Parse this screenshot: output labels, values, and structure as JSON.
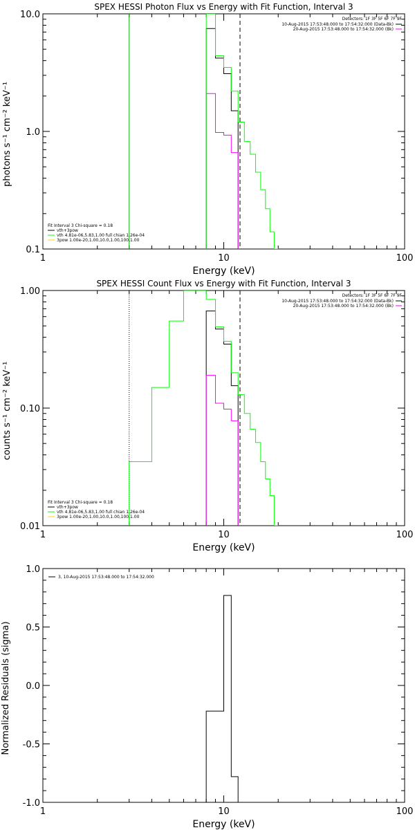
{
  "colors": {
    "axis": "#000000",
    "data_minus_bkg": "#000000",
    "background": "#ff00ff",
    "fit": "#00ff00",
    "fit_sub": "#ffd700",
    "markers": "#000000",
    "lower_bound": "#00aa00"
  },
  "chart_data": [
    {
      "id": "photon",
      "type": "line",
      "title": "SPEX HESSI Photon Flux vs Energy with Fit Function, Interval 3",
      "xlabel": "Energy (keV)",
      "ylabel": "photons s⁻¹ cm⁻² keV⁻¹",
      "xscale": "log",
      "yscale": "log",
      "xlim": [
        1,
        100
      ],
      "ylim": [
        0.1,
        10
      ],
      "xticks": [
        {
          "v": 1,
          "label": "1"
        },
        {
          "v": 10,
          "label": "10"
        },
        {
          "v": 100,
          "label": "100"
        }
      ],
      "yticks": [
        {
          "v": 0.1,
          "label": "0.1"
        },
        {
          "v": 1,
          "label": "1.0"
        },
        {
          "v": 10,
          "label": "10.0"
        }
      ],
      "vlines": [
        {
          "x": 3,
          "style": "solid",
          "color_key": "lower_bound"
        },
        {
          "x": 12.3,
          "style": "dashed",
          "color_key": "markers"
        }
      ],
      "series": [
        {
          "name": "10-Aug-2015 17:53:48.000 to 17:54:32.000 (Data-Bk)",
          "color_key": "data_minus_bkg",
          "edges": [
            8,
            9,
            10,
            11,
            12
          ],
          "values": [
            7.5,
            4.2,
            3.1,
            1.5
          ]
        },
        {
          "name": "20-Aug-2015 17:53:48.000 to 17:54:32.000 (Bk)",
          "color_key": "background",
          "edges": [
            8,
            9,
            10,
            11,
            12
          ],
          "values": [
            2.1,
            0.98,
            0.93,
            0.66
          ]
        },
        {
          "name": "vth+3pow",
          "color_key": "fit",
          "edges": [
            8,
            9,
            10,
            11,
            12,
            13,
            14,
            15,
            16,
            17,
            18,
            19,
            20
          ],
          "values": [
            10.5,
            4.4,
            3.5,
            2.2,
            1.2,
            0.82,
            0.64,
            0.45,
            0.32,
            0.22,
            0.14,
            0.1
          ]
        }
      ],
      "detectors_text": "Detectors: 1F 3F 5F 6F 7F 9F",
      "legend_lines": [
        "10-Aug-2015 17:53:48.000 to 17:54:32.000 (Data-Bk)",
        "20-Aug-2015 17:53:48.000 to 17:54:32.000 (Bk)"
      ],
      "fit_info": {
        "header": "Fit Interval 3   Chi-square = 0.18",
        "items": [
          {
            "text": "vth+3pow",
            "color_key": "data_minus_bkg"
          },
          {
            "text": "vth 4.81e-06,5.83,1.00  full chian 1.26e-04",
            "color_key": "fit"
          },
          {
            "text": "3pow 1.00e-20,1.00,10.0,1.00,100,1.00",
            "color_key": "fit_sub"
          }
        ]
      }
    },
    {
      "id": "count",
      "type": "line",
      "title": "SPEX HESSI Count Flux vs Energy with Fit Function, Interval 3",
      "xlabel": "Energy (keV)",
      "ylabel": "counts s⁻¹ cm⁻² keV⁻¹",
      "xscale": "log",
      "yscale": "log",
      "xlim": [
        1,
        100
      ],
      "ylim": [
        0.01,
        1
      ],
      "xticks": [
        {
          "v": 1,
          "label": "1"
        },
        {
          "v": 10,
          "label": "10"
        },
        {
          "v": 100,
          "label": "100"
        }
      ],
      "yticks": [
        {
          "v": 0.01,
          "label": "0.01"
        },
        {
          "v": 0.1,
          "label": "0.10"
        },
        {
          "v": 1,
          "label": "1.00"
        }
      ],
      "vlines": [
        {
          "x": 3,
          "style": "dotted",
          "color_key": "markers"
        },
        {
          "x": 12.3,
          "style": "dashed",
          "color_key": "markers"
        }
      ],
      "series": [
        {
          "name": "10-Aug-2015 17:53:48.000 to 17:54:32.000 (Data-Bk)",
          "color_key": "data_minus_bkg",
          "edges": [
            8,
            9,
            10,
            11,
            12
          ],
          "values": [
            0.67,
            0.47,
            0.35,
            0.155
          ]
        },
        {
          "name": "20-Aug-2015 17:53:48.000 to 17:54:32.000 (Bk)",
          "color_key": "background",
          "edges": [
            8,
            9,
            10,
            11,
            12
          ],
          "values": [
            0.19,
            0.11,
            0.098,
            0.078
          ]
        },
        {
          "name": "vth+3pow",
          "color_key": "fit",
          "edges": [
            3,
            4,
            5,
            6,
            7,
            8,
            9,
            10,
            11,
            12,
            13,
            14,
            15,
            16,
            17,
            18,
            19,
            20
          ],
          "values": [
            0.035,
            0.15,
            0.55,
            1.1,
            1.1,
            0.84,
            0.49,
            0.37,
            0.2,
            0.13,
            0.09,
            0.066,
            0.051,
            0.035,
            0.025,
            0.018,
            0.01
          ]
        }
      ],
      "detectors_text": "Detectors: 1F 3F 5F 6F 7F 9F",
      "legend_lines": [
        "10-Aug-2015 17:53:48.000 to 17:54:32.000 (Data-Bk)",
        "20-Aug-2015 17:53:48.000 to 17:54:32.000 (Bk)"
      ],
      "fit_info": {
        "header": "Fit Interval 3   Chi-square = 0.18",
        "items": [
          {
            "text": "vth+3pow",
            "color_key": "data_minus_bkg"
          },
          {
            "text": "vth 4.81e-06,5.83,1.00  full chian 1.26e-04",
            "color_key": "fit"
          },
          {
            "text": "3pow 1.00e-20,1.00,10.0,1.00,100,1.00",
            "color_key": "fit_sub"
          }
        ]
      }
    },
    {
      "id": "residuals",
      "type": "line",
      "title": "",
      "xlabel": "Energy (keV)",
      "ylabel": "Normalized Residuals (sigma)",
      "xscale": "log",
      "yscale": "linear",
      "xlim": [
        1,
        100
      ],
      "ylim": [
        -1,
        1
      ],
      "xticks": [
        {
          "v": 1,
          "label": "1"
        },
        {
          "v": 10,
          "label": "10"
        },
        {
          "v": 100,
          "label": "100"
        }
      ],
      "yticks": [
        {
          "v": -1,
          "label": "-1.0"
        },
        {
          "v": -0.5,
          "label": "-0.5"
        },
        {
          "v": 0,
          "label": "0.0"
        },
        {
          "v": 0.5,
          "label": "0.5"
        },
        {
          "v": 1,
          "label": "1.0"
        }
      ],
      "vlines": [],
      "series": [
        {
          "name": "3, 10-Aug-2015 17:53:48.000 to 17:54:32.000",
          "color_key": "data_minus_bkg",
          "edges": [
            8,
            9,
            10,
            11,
            12
          ],
          "values": [
            -0.22,
            -0.22,
            0.77,
            -0.78
          ],
          "baseline": -1
        }
      ],
      "legend_lines": [
        "3, 10-Aug-2015 17:53:48.000 to 17:54:32.000"
      ]
    }
  ]
}
